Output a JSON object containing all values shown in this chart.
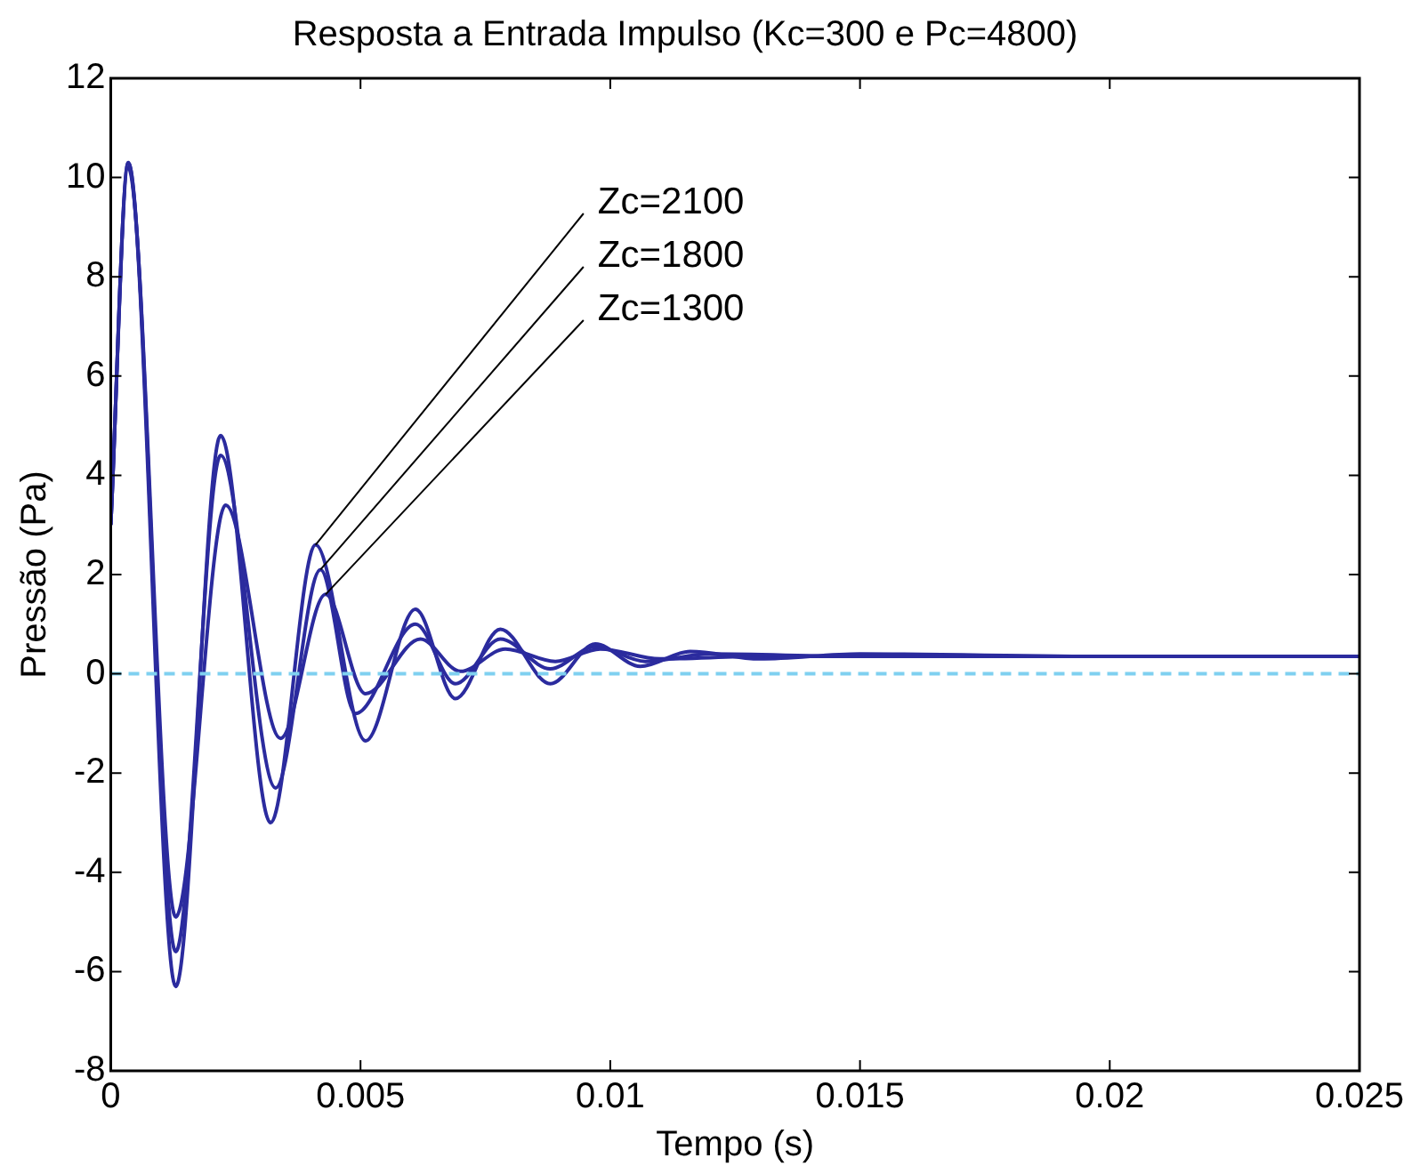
{
  "chart_data": {
    "type": "line",
    "title": "Resposta a Entrada Impulso (Kc=300 e Pc=4800)",
    "xlabel": "Tempo (s)",
    "ylabel": "Pressão (Pa)",
    "xlim": [
      0,
      0.025
    ],
    "xticks": [
      0,
      0.005,
      0.01,
      0.015,
      0.02,
      0.025
    ],
    "ylim": [
      -8,
      12
    ],
    "yticks": [
      -8,
      -6,
      -4,
      -2,
      0,
      2,
      4,
      6,
      8,
      10,
      12
    ],
    "grid": false,
    "legend": false,
    "marker": "none",
    "line_style": "solid",
    "series": [
      {
        "color": "#2b2b9e",
        "x": [
          0,
          0.00035,
          0.0013,
          0.0022,
          0.0032,
          0.0041,
          0.0051,
          0.0061,
          0.0069,
          0.0078,
          0.0088,
          0.0097,
          0.0106,
          0.0116,
          0.013,
          0.015,
          0.02,
          0.025
        ],
        "values": [
          3,
          10.3,
          -6.3,
          4.8,
          -3.0,
          2.6,
          -1.35,
          1.3,
          -0.5,
          0.9,
          -0.2,
          0.6,
          0.15,
          0.45,
          0.3,
          0.4,
          0.35,
          0.35
        ]
      },
      {
        "color": "#2b2b9e",
        "x": [
          0,
          0.00035,
          0.0013,
          0.0022,
          0.0033,
          0.0042,
          0.0049,
          0.0061,
          0.0069,
          0.0078,
          0.0088,
          0.0097,
          0.0107,
          0.012,
          0.015,
          0.02,
          0.025
        ],
        "values": [
          3,
          10.3,
          -5.6,
          4.4,
          -2.3,
          2.1,
          -0.8,
          1.0,
          -0.2,
          0.7,
          0.1,
          0.55,
          0.25,
          0.4,
          0.35,
          0.35,
          0.35
        ]
      },
      {
        "color": "#2b2b9e",
        "x": [
          0,
          0.00035,
          0.0013,
          0.0023,
          0.0034,
          0.0043,
          0.0051,
          0.0062,
          0.007,
          0.0079,
          0.0089,
          0.0098,
          0.011,
          0.013,
          0.025
        ],
        "values": [
          3,
          10.2,
          -4.9,
          3.4,
          -1.3,
          1.6,
          -0.4,
          0.7,
          0.05,
          0.5,
          0.25,
          0.5,
          0.3,
          0.35,
          0.35
        ]
      }
    ],
    "annotations": [
      {
        "text": "Zc=2100",
        "x": 0.0041,
        "y": 2.6
      },
      {
        "text": "Zc=1800",
        "x": 0.0042,
        "y": 2.1
      },
      {
        "text": "Zc=1300",
        "x": 0.0043,
        "y": 1.6
      }
    ],
    "ref_lines": [
      {
        "axis": "y",
        "value": 0,
        "color": "#7fd0f0",
        "line_style": "dashed"
      }
    ]
  }
}
